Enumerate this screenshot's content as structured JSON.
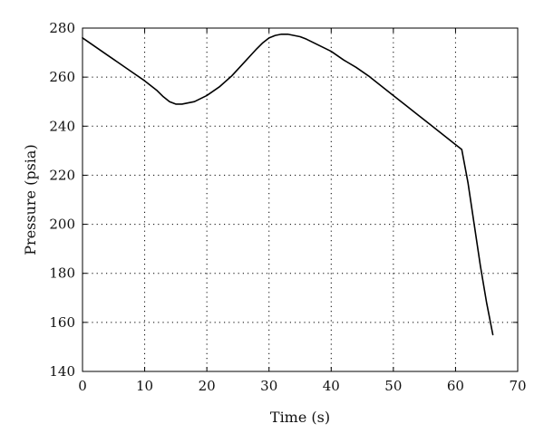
{
  "chart_data": {
    "type": "line",
    "title": "",
    "xlabel": "Time (s)",
    "ylabel": "Pressure (psia)",
    "xlim": [
      0,
      70
    ],
    "ylim": [
      140,
      280
    ],
    "xticks": [
      0,
      10,
      20,
      30,
      40,
      50,
      60,
      70
    ],
    "yticks": [
      140,
      160,
      180,
      200,
      220,
      240,
      260,
      280
    ],
    "grid": true,
    "grid_style": "dotted",
    "legend": "none",
    "line_color": "#000000",
    "series": [
      {
        "x": [
          0,
          2,
          4,
          6,
          8,
          10,
          12,
          13,
          14,
          15,
          16,
          17,
          18,
          20,
          22,
          24,
          26,
          28,
          29,
          30,
          31,
          32,
          33,
          34,
          35,
          36,
          38,
          40,
          42,
          44,
          46,
          48,
          50,
          52,
          54,
          56,
          58,
          60,
          61,
          62,
          63,
          64,
          65,
          66
        ],
        "y": [
          276,
          272.5,
          269,
          265.5,
          262,
          258.5,
          254.5,
          252,
          250,
          249,
          249,
          249.5,
          250,
          252.5,
          256,
          260.5,
          266,
          271.5,
          274,
          276,
          277,
          277.5,
          277.5,
          277,
          276.5,
          275.5,
          273,
          270.5,
          267,
          264,
          260.5,
          256.5,
          252.5,
          248.5,
          244.5,
          240.5,
          236.5,
          232.5,
          230.5,
          217,
          200,
          183,
          168,
          155
        ]
      }
    ]
  }
}
